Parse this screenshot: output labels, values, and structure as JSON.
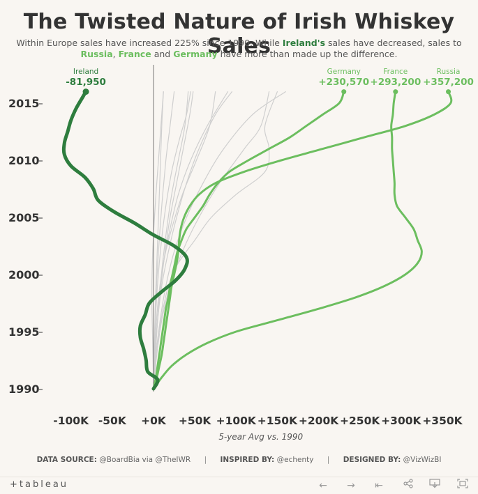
{
  "title": "The Twisted Nature of Irish Whiskey Sales",
  "subtitle": {
    "line1_a": "Within Europe sales have increased 225% since 1990. While ",
    "ireland": "Ireland's",
    "line1_b": " sales have decreased, sales to",
    "russia": "Russia",
    "comma": ", ",
    "france": "France",
    "and": " and ",
    "germany": "Germany",
    "line2_b": " have more than made up the difference."
  },
  "footer": {
    "source_label": "DATA SOURCE:",
    "source_value": "@BoardBia via @TheIWR",
    "inspired_label": "INSPIRED BY:",
    "inspired_value": "@echenty",
    "designed_label": "DESIGNED BY:",
    "designed_value": "@VizWizBI"
  },
  "toolbar": {
    "logo": "+tableau",
    "back_icon": "arrow-left-icon",
    "forward_icon": "arrow-right-icon",
    "reset_icon": "reset-icon",
    "share_icon": "share-icon",
    "download_icon": "download-icon",
    "fullscreen_icon": "fullscreen-icon"
  },
  "colors": {
    "ireland": "#2e7d3e",
    "highlight": "#6cbe5f",
    "other": "#cfcfcf",
    "axis": "#444444"
  },
  "chart_data": {
    "type": "line",
    "title": "The Twisted Nature of Irish Whiskey Sales",
    "xlabel": "5-year Avg vs. 1990",
    "ylabel": "",
    "xlim": [
      -125000,
      375000
    ],
    "ylim": [
      1989,
      2016.5
    ],
    "x_ticks": [
      {
        "value": -100000,
        "label": "-100K"
      },
      {
        "value": -50000,
        "label": "-50K"
      },
      {
        "value": 0,
        "label": "+0K"
      },
      {
        "value": 50000,
        "label": "+50K"
      },
      {
        "value": 100000,
        "label": "+100K"
      },
      {
        "value": 150000,
        "label": "+150K"
      },
      {
        "value": 200000,
        "label": "+200K"
      },
      {
        "value": 250000,
        "label": "+250K"
      },
      {
        "value": 300000,
        "label": "+300K"
      },
      {
        "value": 350000,
        "label": "+350K"
      }
    ],
    "y_ticks": [
      {
        "value": 1990,
        "label": "1990"
      },
      {
        "value": 1995,
        "label": "1995"
      },
      {
        "value": 2000,
        "label": "2000"
      },
      {
        "value": 2005,
        "label": "2005"
      },
      {
        "value": 2010,
        "label": "2010"
      },
      {
        "value": 2015,
        "label": "2015"
      }
    ],
    "series": [
      {
        "name": "Ireland",
        "end_label": "-81,950",
        "role": "ireland",
        "points": [
          [
            0,
            1990
          ],
          [
            5000,
            1990.8
          ],
          [
            -7000,
            1991.5
          ],
          [
            -9000,
            1992.5
          ],
          [
            -12000,
            1993.5
          ],
          [
            -16000,
            1994.5
          ],
          [
            -16000,
            1995.5
          ],
          [
            -10000,
            1996.5
          ],
          [
            -5000,
            1997.5
          ],
          [
            10000,
            1998.5
          ],
          [
            27000,
            1999.5
          ],
          [
            38000,
            2000.5
          ],
          [
            40000,
            2001.5
          ],
          [
            25000,
            2002.5
          ],
          [
            -1000,
            2003.5
          ],
          [
            -23000,
            2004.5
          ],
          [
            -48000,
            2005.5
          ],
          [
            -67000,
            2006.5
          ],
          [
            -73000,
            2007.5
          ],
          [
            -83000,
            2008.5
          ],
          [
            -100000,
            2009.5
          ],
          [
            -108000,
            2010.5
          ],
          [
            -108000,
            2011.5
          ],
          [
            -104000,
            2012.5
          ],
          [
            -100000,
            2013.5
          ],
          [
            -94000,
            2014.5
          ],
          [
            -86000,
            2015.5
          ],
          [
            -81950,
            2016
          ]
        ]
      },
      {
        "name": "Germany",
        "end_label": "+230,570",
        "role": "highlight",
        "points": [
          [
            0,
            1990
          ],
          [
            3000,
            1991
          ],
          [
            5000,
            1992
          ],
          [
            7000,
            1993
          ],
          [
            9000,
            1994
          ],
          [
            11000,
            1995
          ],
          [
            13000,
            1996
          ],
          [
            15000,
            1997
          ],
          [
            18000,
            1998
          ],
          [
            20000,
            1999
          ],
          [
            23000,
            2000
          ],
          [
            26000,
            2001
          ],
          [
            29000,
            2002
          ],
          [
            34000,
            2003
          ],
          [
            40000,
            2004
          ],
          [
            50000,
            2005
          ],
          [
            60000,
            2006
          ],
          [
            68000,
            2007
          ],
          [
            78000,
            2008
          ],
          [
            92000,
            2009
          ],
          [
            115000,
            2010
          ],
          [
            140000,
            2011
          ],
          [
            165000,
            2012
          ],
          [
            185000,
            2013
          ],
          [
            205000,
            2014
          ],
          [
            225000,
            2015
          ],
          [
            230570,
            2016
          ]
        ]
      },
      {
        "name": "France",
        "end_label": "+293,200",
        "role": "highlight",
        "points": [
          [
            0,
            1990
          ],
          [
            10000,
            1991
          ],
          [
            22000,
            1992
          ],
          [
            40000,
            1993
          ],
          [
            65000,
            1994
          ],
          [
            100000,
            1995
          ],
          [
            150000,
            1996
          ],
          [
            200000,
            1997
          ],
          [
            245000,
            1998
          ],
          [
            280000,
            1999
          ],
          [
            305000,
            2000
          ],
          [
            320000,
            2001
          ],
          [
            325000,
            2002
          ],
          [
            320000,
            2003
          ],
          [
            315000,
            2004
          ],
          [
            305000,
            2005
          ],
          [
            295000,
            2006
          ],
          [
            292000,
            2007
          ],
          [
            292000,
            2008
          ],
          [
            291000,
            2009
          ],
          [
            290000,
            2010
          ],
          [
            289000,
            2011
          ],
          [
            289000,
            2012
          ],
          [
            288000,
            2013
          ],
          [
            290000,
            2014
          ],
          [
            291000,
            2015
          ],
          [
            293200,
            2016
          ]
        ]
      },
      {
        "name": "Russia",
        "end_label": "+357,200",
        "role": "highlight",
        "points": [
          [
            0,
            1990
          ],
          [
            4000,
            1991
          ],
          [
            7000,
            1992
          ],
          [
            10000,
            1993
          ],
          [
            12000,
            1994
          ],
          [
            14000,
            1995
          ],
          [
            16000,
            1996
          ],
          [
            18000,
            1997
          ],
          [
            20000,
            1998
          ],
          [
            22000,
            1999
          ],
          [
            25000,
            2000
          ],
          [
            28000,
            2001
          ],
          [
            30000,
            2002
          ],
          [
            31000,
            2003
          ],
          [
            33000,
            2004
          ],
          [
            37000,
            2005
          ],
          [
            44000,
            2006
          ],
          [
            55000,
            2007
          ],
          [
            75000,
            2008
          ],
          [
            110000,
            2009
          ],
          [
            155000,
            2010
          ],
          [
            205000,
            2011
          ],
          [
            255000,
            2012
          ],
          [
            305000,
            2013
          ],
          [
            340000,
            2014
          ],
          [
            360000,
            2015
          ],
          [
            357200,
            2016
          ]
        ]
      },
      {
        "name": "",
        "role": "other",
        "points": [
          [
            0,
            1990
          ],
          [
            2000,
            1993
          ],
          [
            5000,
            1996
          ],
          [
            10000,
            1999
          ],
          [
            18000,
            2002
          ],
          [
            28000,
            2005
          ],
          [
            40000,
            2008
          ],
          [
            55000,
            2011
          ],
          [
            75000,
            2014
          ],
          [
            95000,
            2016
          ]
        ]
      },
      {
        "name": "",
        "role": "other",
        "points": [
          [
            0,
            1990
          ],
          [
            3000,
            1993
          ],
          [
            8000,
            1996
          ],
          [
            15000,
            1999
          ],
          [
            25000,
            2002
          ],
          [
            40000,
            2005
          ],
          [
            60000,
            2008
          ],
          [
            85000,
            2011
          ],
          [
            120000,
            2014
          ],
          [
            160000,
            2016
          ]
        ]
      },
      {
        "name": "",
        "role": "other",
        "points": [
          [
            0,
            1990
          ],
          [
            2000,
            1994
          ],
          [
            6000,
            1998
          ],
          [
            12000,
            2001
          ],
          [
            20000,
            2004
          ],
          [
            30000,
            2007
          ],
          [
            45000,
            2010
          ],
          [
            65000,
            2013
          ],
          [
            90000,
            2016
          ]
        ]
      },
      {
        "name": "",
        "role": "other",
        "points": [
          [
            0,
            1990
          ],
          [
            1000,
            1994
          ],
          [
            3000,
            1998
          ],
          [
            6000,
            2002
          ],
          [
            10000,
            2006
          ],
          [
            15000,
            2010
          ],
          [
            20000,
            2013
          ],
          [
            25000,
            2016
          ]
        ]
      },
      {
        "name": "",
        "role": "other",
        "points": [
          [
            0,
            1990
          ],
          [
            -1000,
            1994
          ],
          [
            -2000,
            1998
          ],
          [
            -1000,
            2002
          ],
          [
            2000,
            2006
          ],
          [
            6000,
            2010
          ],
          [
            9000,
            2013
          ],
          [
            12000,
            2016
          ]
        ]
      },
      {
        "name": "",
        "role": "other",
        "points": [
          [
            0,
            1990
          ],
          [
            4000,
            1993
          ],
          [
            10000,
            1996
          ],
          [
            20000,
            1999
          ],
          [
            35000,
            2002
          ],
          [
            55000,
            2005
          ],
          [
            80000,
            2008
          ],
          [
            110000,
            2011
          ],
          [
            130000,
            2013
          ],
          [
            140000,
            2016
          ]
        ]
      },
      {
        "name": "",
        "role": "other",
        "points": [
          [
            0,
            1990
          ],
          [
            3000,
            1993
          ],
          [
            9000,
            1996
          ],
          [
            18000,
            1999
          ],
          [
            30000,
            2001
          ],
          [
            50000,
            2003
          ],
          [
            70000,
            2005
          ],
          [
            100000,
            2007
          ],
          [
            135000,
            2009
          ],
          [
            140000,
            2011
          ],
          [
            135000,
            2013
          ],
          [
            150000,
            2016
          ]
        ]
      },
      {
        "name": "",
        "role": "other",
        "points": [
          [
            0,
            1990
          ],
          [
            2000,
            1993
          ],
          [
            5000,
            1996
          ],
          [
            9000,
            1999
          ],
          [
            14000,
            2002
          ],
          [
            20000,
            2005
          ],
          [
            28000,
            2008
          ],
          [
            36000,
            2011
          ],
          [
            44000,
            2014
          ],
          [
            48000,
            2016
          ]
        ]
      },
      {
        "name": "",
        "role": "other",
        "points": [
          [
            0,
            1990
          ],
          [
            1000,
            1993
          ],
          [
            3000,
            1997
          ],
          [
            7000,
            2001
          ],
          [
            13000,
            2005
          ],
          [
            22000,
            2009
          ],
          [
            32000,
            2012
          ],
          [
            40000,
            2014
          ],
          [
            45000,
            2016
          ]
        ]
      },
      {
        "name": "",
        "role": "other",
        "points": [
          [
            0,
            1990
          ],
          [
            2000,
            1993
          ],
          [
            6000,
            1997
          ],
          [
            12000,
            2001
          ],
          [
            22000,
            2004
          ],
          [
            35000,
            2007
          ],
          [
            52000,
            2010
          ],
          [
            68000,
            2013
          ],
          [
            75000,
            2016
          ]
        ]
      },
      {
        "name": "",
        "role": "other",
        "points": [
          [
            0,
            1990
          ],
          [
            1000,
            1993
          ],
          [
            2000,
            1997
          ],
          [
            4000,
            2001
          ],
          [
            6000,
            2005
          ],
          [
            8000,
            2009
          ],
          [
            10000,
            2013
          ],
          [
            12000,
            2016
          ]
        ]
      },
      {
        "name": "",
        "role": "other",
        "points": [
          [
            0,
            1990
          ],
          [
            2000,
            1992
          ],
          [
            4000,
            1995
          ],
          [
            7000,
            1998
          ],
          [
            11000,
            2001
          ],
          [
            16000,
            2004
          ],
          [
            22000,
            2007
          ],
          [
            30000,
            2010
          ],
          [
            38000,
            2013
          ],
          [
            42000,
            2016
          ]
        ]
      }
    ]
  }
}
